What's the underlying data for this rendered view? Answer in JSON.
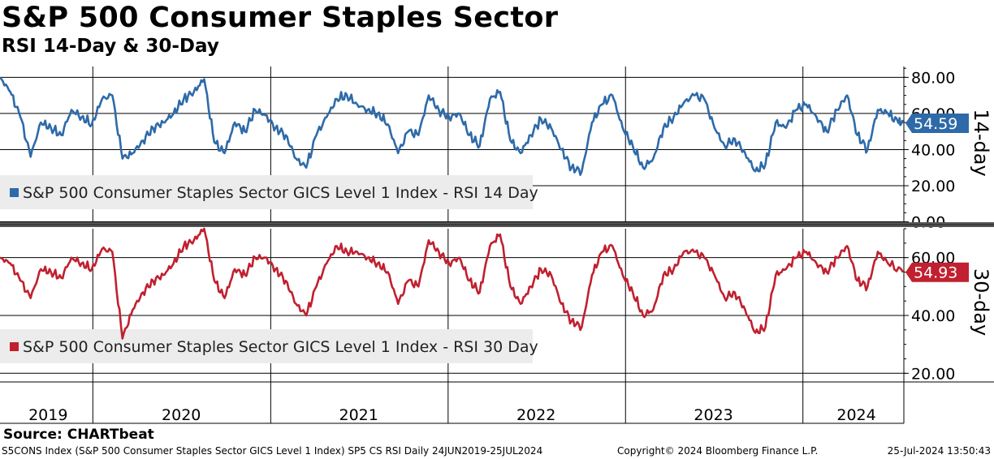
{
  "title": "S&P 500 Consumer Staples Sector",
  "subtitle": "RSI 14-Day & 30-Day",
  "source": "Source: CHARTbeat",
  "footer": {
    "left": "S5CONS Index (S&P 500 Consumer Staples Sector GICS Level 1 Index) SP5 CS RSI  Daily 24JUN2019-25JUL2024",
    "middle": "Copyright© 2024 Bloomberg Finance L.P.",
    "right": "25-Jul-2024 13:50:43"
  },
  "colors": {
    "rsi14": "#2e6aa8",
    "rsi30": "#c0202f",
    "grid": "#000000",
    "legend_bg": "#ececec"
  },
  "chart_data": [
    {
      "type": "line",
      "panel_label": "14-day",
      "legend": "S&P 500 Consumer Staples Sector GICS Level 1 Index - RSI 14 Day",
      "last_value": "54.59",
      "ylim": [
        0,
        80
      ],
      "yticks": [
        "80.00",
        "60.00",
        "40.00",
        "20.00",
        "0.00"
      ],
      "ytick_values": [
        80,
        60,
        40,
        20,
        0
      ],
      "grid": true,
      "x_range": [
        "2019-06-24",
        "2024-07-25"
      ],
      "series": [
        {
          "x": [
            "2019-06-24",
            "2019-07-15",
            "2019-08-05",
            "2019-08-26",
            "2019-09-16",
            "2019-10-07",
            "2019-10-28",
            "2019-11-18",
            "2019-12-09",
            "2019-12-30",
            "2020-01-20",
            "2020-02-10",
            "2020-03-02",
            "2020-03-23",
            "2020-04-13",
            "2020-05-04",
            "2020-05-25",
            "2020-06-15",
            "2020-07-06",
            "2020-07-27",
            "2020-08-17",
            "2020-09-07",
            "2020-09-28",
            "2020-10-19",
            "2020-11-09",
            "2020-11-30",
            "2020-12-21",
            "2021-01-11",
            "2021-02-01",
            "2021-02-22",
            "2021-03-15",
            "2021-04-05",
            "2021-04-26",
            "2021-05-17",
            "2021-06-07",
            "2021-06-28",
            "2021-07-19",
            "2021-08-09",
            "2021-08-30",
            "2021-09-20",
            "2021-10-11",
            "2021-11-01",
            "2021-11-22",
            "2021-12-13",
            "2022-01-03",
            "2022-01-24",
            "2022-02-14",
            "2022-03-07",
            "2022-03-28",
            "2022-04-18",
            "2022-05-09",
            "2022-05-30",
            "2022-06-20",
            "2022-07-11",
            "2022-08-01",
            "2022-08-22",
            "2022-09-12",
            "2022-10-03",
            "2022-10-24",
            "2022-11-14",
            "2022-12-05",
            "2022-12-26",
            "2023-01-16",
            "2023-02-06",
            "2023-02-27",
            "2023-03-20",
            "2023-04-10",
            "2023-05-01",
            "2023-05-22",
            "2023-06-12",
            "2023-07-03",
            "2023-07-24",
            "2023-08-14",
            "2023-09-04",
            "2023-09-25",
            "2023-10-16",
            "2023-11-06",
            "2023-11-27",
            "2023-12-18",
            "2024-01-08",
            "2024-01-29",
            "2024-02-19",
            "2024-03-11",
            "2024-04-01",
            "2024-04-22",
            "2024-05-13",
            "2024-06-03",
            "2024-06-24",
            "2024-07-15",
            "2024-07-25"
          ],
          "values": [
            80,
            72,
            58,
            36,
            55,
            52,
            48,
            62,
            58,
            54,
            68,
            70,
            35,
            38,
            45,
            52,
            55,
            60,
            68,
            72,
            79,
            44,
            38,
            55,
            50,
            62,
            59,
            52,
            48,
            35,
            30,
            48,
            58,
            68,
            70,
            65,
            62,
            60,
            54,
            38,
            50,
            48,
            70,
            62,
            58,
            60,
            48,
            42,
            68,
            72,
            45,
            38,
            48,
            57,
            52,
            40,
            30,
            28,
            55,
            65,
            70,
            52,
            42,
            30,
            35,
            52,
            58,
            66,
            70,
            68,
            52,
            42,
            46,
            38,
            28,
            32,
            55,
            52,
            62,
            65,
            58,
            50,
            62,
            70,
            48,
            40,
            62,
            60,
            55,
            54.59
          ]
        }
      ]
    },
    {
      "type": "line",
      "panel_label": "30-day",
      "legend": "S&P 500 Consumer Staples Sector GICS Level 1 Index - RSI 30 Day",
      "last_value": "54.93",
      "ylim": [
        20,
        70
      ],
      "yticks": [
        "60.00",
        "40.00",
        "20.00"
      ],
      "ytick_values": [
        60,
        40,
        20
      ],
      "grid": true,
      "x_range": [
        "2019-06-24",
        "2024-07-25"
      ],
      "series": [
        {
          "x": [
            "2019-06-24",
            "2019-07-15",
            "2019-08-05",
            "2019-08-26",
            "2019-09-16",
            "2019-10-07",
            "2019-10-28",
            "2019-11-18",
            "2019-12-09",
            "2019-12-30",
            "2020-01-20",
            "2020-02-10",
            "2020-03-02",
            "2020-03-23",
            "2020-04-13",
            "2020-05-04",
            "2020-05-25",
            "2020-06-15",
            "2020-07-06",
            "2020-07-27",
            "2020-08-17",
            "2020-09-07",
            "2020-09-28",
            "2020-10-19",
            "2020-11-09",
            "2020-11-30",
            "2020-12-21",
            "2021-01-11",
            "2021-02-01",
            "2021-02-22",
            "2021-03-15",
            "2021-04-05",
            "2021-04-26",
            "2021-05-17",
            "2021-06-07",
            "2021-06-28",
            "2021-07-19",
            "2021-08-09",
            "2021-08-30",
            "2021-09-20",
            "2021-10-11",
            "2021-11-01",
            "2021-11-22",
            "2021-12-13",
            "2022-01-03",
            "2022-01-24",
            "2022-02-14",
            "2022-03-07",
            "2022-03-28",
            "2022-04-18",
            "2022-05-09",
            "2022-05-30",
            "2022-06-20",
            "2022-07-11",
            "2022-08-01",
            "2022-08-22",
            "2022-09-12",
            "2022-10-03",
            "2022-10-24",
            "2022-11-14",
            "2022-12-05",
            "2022-12-26",
            "2023-01-16",
            "2023-02-06",
            "2023-02-27",
            "2023-03-20",
            "2023-04-10",
            "2023-05-01",
            "2023-05-22",
            "2023-06-12",
            "2023-07-03",
            "2023-07-24",
            "2023-08-14",
            "2023-09-04",
            "2023-09-25",
            "2023-10-16",
            "2023-11-06",
            "2023-11-27",
            "2023-12-18",
            "2024-01-08",
            "2024-01-29",
            "2024-02-19",
            "2024-03-11",
            "2024-04-01",
            "2024-04-22",
            "2024-05-13",
            "2024-06-03",
            "2024-06-24",
            "2024-07-25"
          ],
          "values": [
            60,
            58,
            52,
            46,
            56,
            55,
            53,
            60,
            58,
            56,
            63,
            62,
            32,
            42,
            48,
            52,
            54,
            58,
            64,
            66,
            70,
            52,
            46,
            56,
            54,
            60,
            60,
            56,
            52,
            44,
            40,
            50,
            58,
            64,
            62,
            62,
            60,
            58,
            55,
            44,
            52,
            50,
            66,
            62,
            58,
            60,
            52,
            48,
            64,
            68,
            50,
            44,
            50,
            56,
            54,
            44,
            38,
            36,
            54,
            62,
            64,
            54,
            48,
            40,
            42,
            54,
            56,
            62,
            62,
            60,
            54,
            46,
            48,
            42,
            34,
            36,
            54,
            56,
            60,
            62,
            58,
            55,
            60,
            64,
            52,
            50,
            62,
            58,
            54.93
          ]
        }
      ]
    }
  ],
  "x_year_labels": [
    "2019",
    "2020",
    "2021",
    "2022",
    "2023",
    "2024"
  ],
  "x_year_dates": [
    "2019-10-01",
    "2020-07-01",
    "2021-07-01",
    "2022-07-01",
    "2023-07-01",
    "2024-04-20"
  ],
  "x_year_boundaries": [
    "2020-01-01",
    "2021-01-01",
    "2022-01-01",
    "2023-01-01",
    "2024-01-01"
  ]
}
